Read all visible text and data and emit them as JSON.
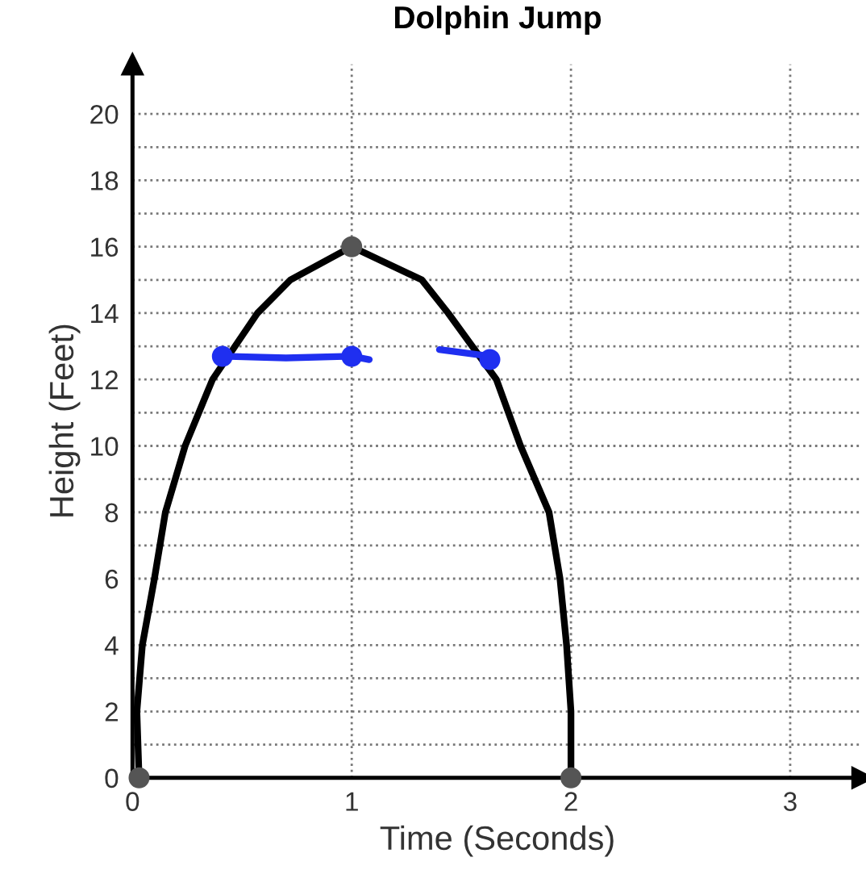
{
  "chart_data": {
    "type": "line",
    "title": "Dolphin Jump",
    "xlabel": "Time (Seconds)",
    "ylabel": "Height (Feet)",
    "series": [
      {
        "color": "#000000",
        "x": [
          0.03,
          0.02,
          0.045,
          0.1,
          0.15,
          0.24,
          0.365,
          0.57,
          0.72,
          1.0,
          1.32,
          1.44,
          1.66,
          1.77,
          1.9,
          1.95,
          1.98,
          2.0,
          2.0
        ],
        "values": [
          0,
          2,
          4,
          6,
          8,
          10,
          12,
          14,
          15,
          16,
          15,
          14,
          12,
          10,
          8,
          6,
          4,
          2,
          0
        ]
      },
      {
        "type": "scatter",
        "color": "#555555",
        "x": [
          0.03,
          1.0,
          2.0
        ],
        "values": [
          0,
          16,
          0
        ]
      },
      {
        "color": "#1f2ff0",
        "x": [
          0.41,
          0.7,
          1.0,
          1.08,
          1.14,
          1.4,
          1.63
        ],
        "values": [
          12.7,
          12.65,
          12.7,
          12.6,
          null,
          12.9,
          12.7
        ]
      },
      {
        "type": "scatter",
        "color": "#1f2ff0",
        "x": [
          0.41,
          1.0,
          1.63
        ],
        "values": [
          12.7,
          12.7,
          12.6
        ]
      }
    ],
    "xlim": [
      0,
      3.33
    ],
    "ylim": [
      0,
      21.5
    ],
    "xticks": [
      0,
      1,
      2,
      3
    ],
    "yticks": [
      0,
      {
        "value": 1,
        "label": null
      },
      2,
      {
        "value": 3,
        "label": null
      },
      4,
      {
        "value": 5,
        "label": null
      },
      6,
      {
        "value": 7,
        "label": null
      },
      8,
      {
        "value": 9,
        "label": null
      },
      10,
      {
        "value": 11,
        "label": null
      },
      12,
      {
        "value": 13,
        "label": null
      },
      14,
      {
        "value": 15,
        "label": null
      },
      16,
      {
        "value": 17,
        "label": null
      },
      18,
      {
        "value": 19,
        "label": null
      },
      20
    ],
    "grid": true,
    "line_style": "solid"
  }
}
